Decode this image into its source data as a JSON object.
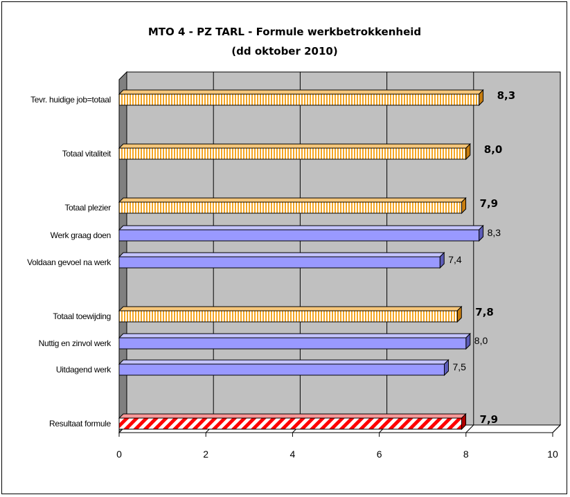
{
  "chart_data": {
    "type": "bar",
    "orientation": "horizontal",
    "title_line1": "MTO 4 - PZ TARL - Formule werkbetrokkenheid",
    "title_line2": "(dd oktober 2010)",
    "xlabel": "",
    "ylabel": "",
    "xlim": [
      0,
      10
    ],
    "xticks": [
      0,
      2,
      4,
      6,
      8,
      10
    ],
    "grid": true,
    "legend": "none",
    "colors": {
      "totaal_stripe": "#f5a623",
      "sub_bar": "#9999ff",
      "resultaat_stripe": "#ff0000",
      "plot_bg": "#c0c0c0",
      "wall_left": "#808080"
    },
    "rows": [
      {
        "label": "Tevr. huidige job=totaal",
        "value": 8.3,
        "value_label": "8,3",
        "style": "totaal"
      },
      {
        "label": "Totaal vitaliteit",
        "value": 8.0,
        "value_label": "8,0",
        "style": "totaal"
      },
      {
        "label": "Totaal plezier",
        "value": 7.9,
        "value_label": "7,9",
        "style": "totaal"
      },
      {
        "label": "Werk graag doen",
        "value": 8.3,
        "value_label": "8,3",
        "style": "sub"
      },
      {
        "label": "Voldaan gevoel na werk",
        "value": 7.4,
        "value_label": "7,4",
        "style": "sub"
      },
      {
        "label": "Totaal toewijding",
        "value": 7.8,
        "value_label": "7,8",
        "style": "totaal"
      },
      {
        "label": "Nuttig en zinvol werk",
        "value": 8.0,
        "value_label": "8,0",
        "style": "sub"
      },
      {
        "label": "Uitdagend werk",
        "value": 7.5,
        "value_label": "7,5",
        "style": "sub"
      },
      {
        "label": "Resultaat formule",
        "value": 7.9,
        "value_label": "7,9",
        "style": "resultaat"
      }
    ]
  }
}
